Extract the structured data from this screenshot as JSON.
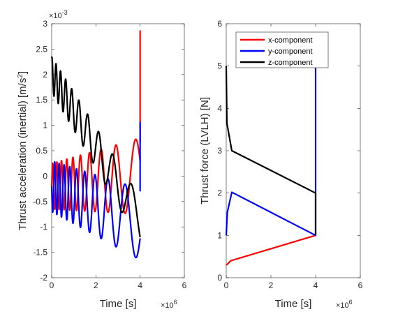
{
  "chart_data": [
    {
      "type": "line",
      "xlabel": "Time [s]",
      "ylabel": "Thrust acceleration (inertial) [m/s^2]",
      "x_exponent_label": "×10^6",
      "y_exponent_label": "×10^-3",
      "xlim": [
        0,
        6
      ],
      "ylim": [
        -2,
        3
      ],
      "xticks": [
        0,
        2,
        4,
        6
      ],
      "yticks": [
        -2,
        -1.5,
        -1,
        -0.5,
        0,
        0.5,
        1,
        1.5,
        2,
        2.5,
        3
      ],
      "grid": false,
      "legend": null,
      "series": [
        {
          "color": "#ff0000",
          "style": "damped-oscillation",
          "x": [
            0,
            4
          ],
          "start_y": -0.2,
          "start_amp": 0.45,
          "end_y": 0.0,
          "end_amp": 0.75,
          "period_start": 0.18,
          "period_end": 1.1,
          "phase": 0.0,
          "end_segment": {
            "x": 4,
            "y_from": 0.65,
            "y_to": 2.87
          }
        },
        {
          "color": "#0000ff",
          "style": "damped-oscillation",
          "x": [
            0,
            4
          ],
          "start_y": -0.2,
          "start_amp": 0.5,
          "end_y": -0.95,
          "end_amp": 0.7,
          "period_start": 0.18,
          "period_end": 1.1,
          "phase": 3.1416,
          "end_segment": {
            "x": 4,
            "y_from": -0.3,
            "y_to": 1.07
          }
        },
        {
          "color": "#000000",
          "style": "damped-oscillation",
          "x": [
            0,
            4
          ],
          "start_y": 2.0,
          "start_amp": 0.35,
          "end_y": -0.88,
          "end_amp": 0.45,
          "period_start": 0.18,
          "period_end": 1.1,
          "phase": 1.2,
          "end_segment": null
        }
      ]
    },
    {
      "type": "line",
      "xlabel": "Time [s]",
      "ylabel": "Thrust force (LVLH) [N]",
      "x_exponent_label": "×10^6",
      "xlim": [
        0,
        6
      ],
      "ylim": [
        0,
        6
      ],
      "xticks": [
        0,
        2,
        4,
        6
      ],
      "yticks": [
        0,
        1,
        2,
        3,
        4,
        5,
        6
      ],
      "grid": false,
      "legend": "top-left",
      "series": [
        {
          "name": "x-component",
          "color": "#ff0000",
          "points": [
            [
              0,
              0.3
            ],
            [
              0.05,
              0.32
            ],
            [
              0.2,
              0.4
            ],
            [
              4.0,
              1.0
            ]
          ]
        },
        {
          "name": "y-component",
          "color": "#0000ff",
          "points": [
            [
              0,
              1.0
            ],
            [
              0.05,
              1.55
            ],
            [
              0.25,
              2.02
            ],
            [
              4.0,
              1.0
            ],
            [
              4.0,
              5.0
            ]
          ]
        },
        {
          "name": "z-component",
          "color": "#000000",
          "points": [
            [
              0,
              5.0
            ],
            [
              0.03,
              3.65
            ],
            [
              0.25,
              3.0
            ],
            [
              4.0,
              2.0
            ],
            [
              4.0,
              1.0
            ]
          ]
        }
      ]
    }
  ]
}
